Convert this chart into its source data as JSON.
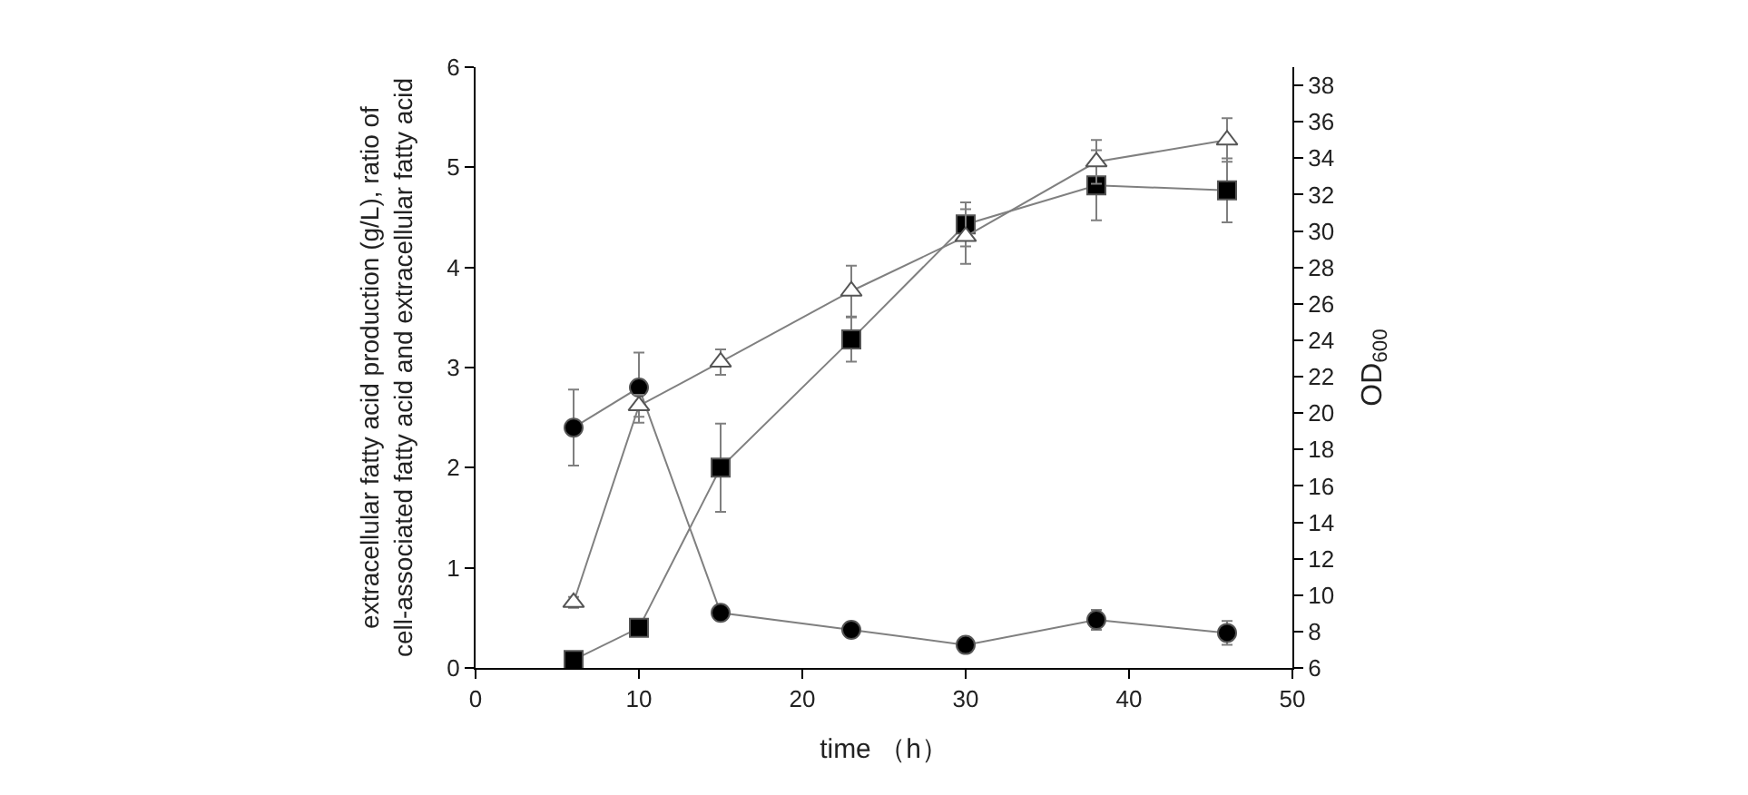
{
  "chart_data": {
    "type": "line",
    "xlabel": "time （h）",
    "ylabel": "extracellular fatty acid production (g/L), ratio of cell-associated fatty acid and extracellular fatty acid",
    "y2label": "OD$_{600}$",
    "x": [
      6,
      10,
      15,
      23,
      30,
      38,
      46
    ],
    "series": [
      {
        "color": "#000000",
        "marker": "square",
        "values": [
          0.08,
          0.4,
          2.0,
          3.28,
          4.43,
          4.82,
          4.77
        ],
        "errors": [
          null,
          null,
          0.44,
          0.22,
          0.22,
          0.35,
          0.32
        ]
      },
      {
        "color": "#000000",
        "marker": "circle",
        "values": [
          2.4,
          2.8,
          0.55,
          0.38,
          0.23,
          0.48,
          0.35
        ],
        "errors": [
          0.38,
          0.35,
          null,
          null,
          null,
          0.1,
          0.12
        ]
      },
      {
        "color": "#ffffff",
        "marker": "triangle",
        "axis": "y2",
        "values": [
          9.6,
          20.4,
          22.8,
          26.7,
          29.7,
          33.8,
          35.0
        ],
        "errors": [
          0.3,
          0.6,
          0.7,
          1.4,
          1.5,
          1.2,
          1.2
        ]
      }
    ],
    "xlim": [
      0,
      50
    ],
    "xticks": [
      0,
      10,
      20,
      30,
      40,
      50
    ],
    "ylim": [
      0,
      6
    ],
    "yticks": [
      0,
      1,
      2,
      3,
      4,
      5,
      6
    ],
    "y2lim": [
      6,
      39
    ],
    "y2ticks": [
      6,
      8,
      10,
      12,
      14,
      16,
      18,
      20,
      22,
      24,
      26,
      28,
      30,
      32,
      34,
      36,
      38
    ]
  }
}
